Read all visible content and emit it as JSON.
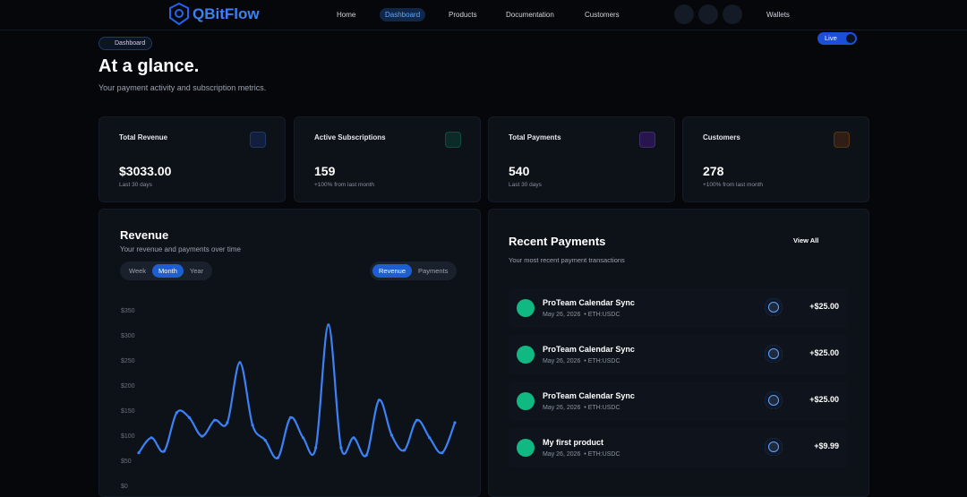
{
  "nav": {
    "logo": "QBitFlow",
    "items": [
      "Home",
      "Dashboard",
      "Products",
      "Documentation",
      "Customers"
    ],
    "wallets": "Wallets"
  },
  "header": {
    "badge": "Dashboard",
    "live": "Live",
    "title": "At a glance.",
    "subtitle": "Your payment activity and subscription metrics."
  },
  "stats": [
    {
      "label": "Total Revenue",
      "value": "$3033.00",
      "note": "Last 30 days"
    },
    {
      "label": "Active Subscriptions",
      "value": "159",
      "note": "+100% from last month"
    },
    {
      "label": "Total Payments",
      "value": "540",
      "note": "Last 30 days"
    },
    {
      "label": "Customers",
      "value": "278",
      "note": "+100% from last month"
    }
  ],
  "revenue": {
    "title": "Revenue",
    "subtitle": "Your revenue and payments over time",
    "periods": [
      "Week",
      "Month",
      "Year"
    ],
    "modes": [
      "Revenue",
      "Payments"
    ],
    "chart_data": {
      "type": "line",
      "color": "#3b82f6",
      "ylim": [
        0,
        350
      ],
      "yticks": [
        {
          "value": 0,
          "label": "$0"
        },
        {
          "value": 50,
          "label": "$50"
        },
        {
          "value": 100,
          "label": "$100"
        },
        {
          "value": 150,
          "label": "$150"
        },
        {
          "value": 200,
          "label": "$200"
        },
        {
          "value": 250,
          "label": "$250"
        },
        {
          "value": 300,
          "label": "$300"
        },
        {
          "value": 350,
          "label": "$350"
        }
      ],
      "values": [
        65,
        95,
        68,
        145,
        135,
        98,
        130,
        125,
        245,
        120,
        90,
        55,
        135,
        95,
        75,
        320,
        75,
        95,
        60,
        170,
        100,
        70,
        130,
        95,
        65,
        125
      ]
    }
  },
  "payments": {
    "title": "Recent Payments",
    "subtitle": "Your most recent payment transactions",
    "view_all": "View All",
    "items": [
      {
        "name": "ProTeam Calendar Sync",
        "date": "May 26, 2026",
        "network": "ETH:USDC",
        "amount": "+$25.00"
      },
      {
        "name": "ProTeam Calendar Sync",
        "date": "May 26, 2026",
        "network": "ETH:USDC",
        "amount": "+$25.00"
      },
      {
        "name": "ProTeam Calendar Sync",
        "date": "May 26, 2026",
        "network": "ETH:USDC",
        "amount": "+$25.00"
      },
      {
        "name": "My first product",
        "date": "May 26, 2026",
        "network": "ETH:USDC",
        "amount": "+$9.99"
      }
    ]
  }
}
